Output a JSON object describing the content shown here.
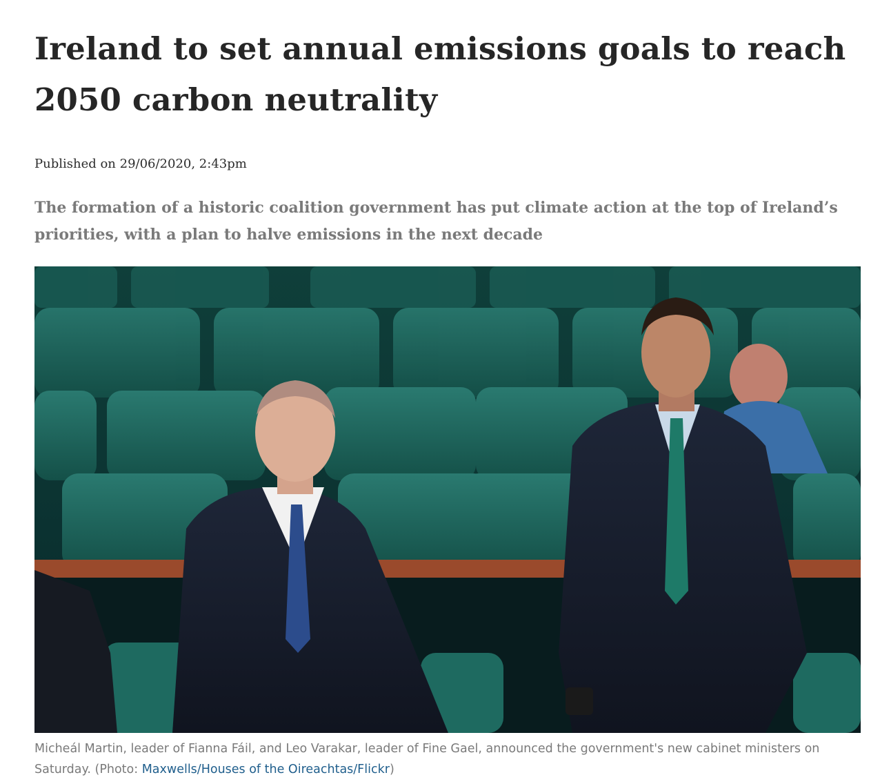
{
  "article": {
    "headline": "Ireland to set annual emissions goals to reach 2050 carbon neutrality",
    "published": "Published on 29/06/2020, 2:43pm",
    "standfirst": "The formation of a historic coalition government has put climate action at the top of Ireland’s priorities, with a plan to halve emissions in the next decade",
    "photo": {
      "caption_text": "Micheál Martin, leader of Fianna Fáil, and Leo Varakar, leader of Fine Gael, announced the government's new cabinet ministers on Saturday. (Photo: ",
      "credit_link": "Maxwells/Houses of the Oireachtas/Flickr",
      "caption_end": ")"
    }
  },
  "colors": {
    "headline": "#262626",
    "standfirst": "#7a7a7a",
    "caption": "#7a7a7a",
    "link": "#1f5e8c",
    "seat_green": "#1a5c55"
  }
}
